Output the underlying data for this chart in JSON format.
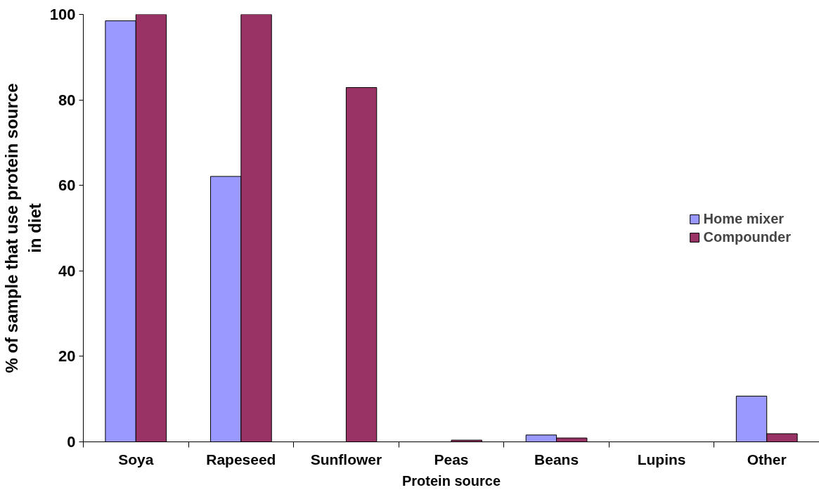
{
  "chart_data": {
    "type": "bar",
    "xlabel": "Protein source",
    "ylabel": "% of sample that use protein source\nin diet",
    "categories": [
      "Soya",
      "Rapeseed",
      "Sunflower",
      "Peas",
      "Beans",
      "Lupins",
      "Other"
    ],
    "series": [
      {
        "name": "Home mixer",
        "color": "#9999ff",
        "values": [
          98.5,
          62.1,
          null,
          null,
          1.6,
          null,
          10.7
        ]
      },
      {
        "name": "Compounder",
        "color": "#993366",
        "values": [
          100,
          100,
          82.9,
          0.4,
          0.9,
          null,
          1.9
        ]
      }
    ],
    "ylim": [
      0,
      100
    ],
    "yticks": [
      0,
      20,
      40,
      60,
      80,
      100
    ],
    "grid": false,
    "legend": "right"
  }
}
